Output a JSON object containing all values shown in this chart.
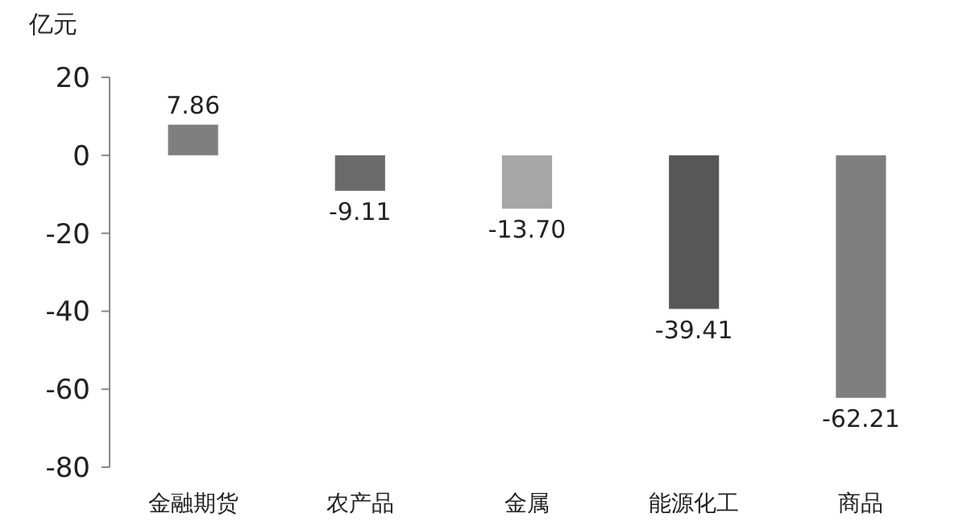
{
  "chart_data": {
    "type": "bar",
    "ylabel": "亿元",
    "categories": [
      "金融期货",
      "农产品",
      "金属",
      "能源化工",
      "商品"
    ],
    "values": [
      7.86,
      -9.11,
      -13.7,
      -39.41,
      -62.21
    ],
    "colors": [
      "#7f7f7f",
      "#6b6b6b",
      "#a6a6a6",
      "#575757",
      "#7f7f7f"
    ],
    "value_labels": [
      "7.86",
      "-9.11",
      "-13.70",
      "-39.41",
      "-62.21"
    ],
    "ylim": [
      -80,
      20
    ],
    "yticks": [
      -80,
      -60,
      -40,
      -20,
      0,
      20
    ]
  }
}
